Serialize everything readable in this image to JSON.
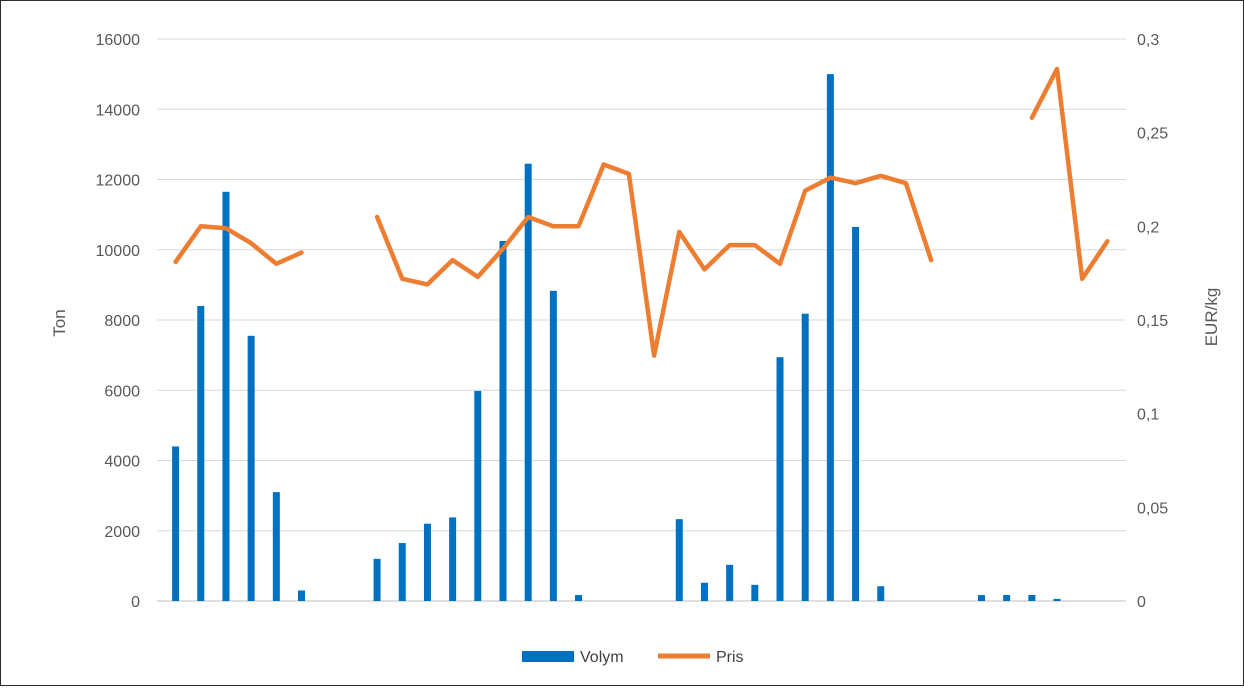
{
  "chart_data": {
    "type": "bar+line",
    "x": [
      1,
      2,
      3,
      4,
      5,
      6,
      7,
      8,
      9,
      10,
      11,
      12,
      13,
      14,
      15,
      16,
      17,
      18,
      19,
      20,
      21,
      22,
      23,
      24,
      25,
      26,
      27,
      28,
      29,
      30,
      31,
      32,
      33,
      34,
      35,
      36,
      37,
      38
    ],
    "series": [
      {
        "name": "Volym",
        "type": "bar",
        "axis": "left",
        "color": "#0070C0",
        "values": [
          4400,
          8400,
          11650,
          7550,
          3100,
          300,
          null,
          null,
          1200,
          1650,
          2200,
          2380,
          5980,
          10250,
          12450,
          8830,
          170,
          null,
          null,
          null,
          2330,
          520,
          1030,
          460,
          6940,
          8180,
          15000,
          10650,
          420,
          null,
          null,
          null,
          170,
          170,
          170,
          60,
          null,
          null
        ]
      },
      {
        "name": "Pris",
        "type": "line",
        "axis": "right",
        "color": "#ED7D31",
        "values": [
          0.181,
          0.2,
          0.199,
          0.191,
          0.18,
          0.186,
          null,
          null,
          0.205,
          0.172,
          0.169,
          0.182,
          0.173,
          0.188,
          0.205,
          0.2,
          0.2,
          0.233,
          0.228,
          0.131,
          0.197,
          0.177,
          0.19,
          0.19,
          0.18,
          0.219,
          0.226,
          0.223,
          0.227,
          0.223,
          0.182,
          null,
          null,
          null,
          0.258,
          0.284,
          0.172,
          0.192
        ]
      }
    ],
    "y_left": {
      "label": "Ton",
      "min": 0,
      "max": 16000,
      "ticks": [
        "0",
        "2000",
        "4000",
        "6000",
        "8000",
        "10000",
        "12000",
        "14000",
        "16000"
      ]
    },
    "y_right": {
      "label": "EUR/kg",
      "min": 0,
      "max": 0.3,
      "ticks": [
        "0",
        "0,05",
        "0,1",
        "0,15",
        "0,2",
        "0,25",
        "0,3"
      ]
    },
    "grid": true,
    "legend_position": "bottom",
    "legend": [
      {
        "label": "Volym",
        "color": "#0070C0",
        "marker": "bar"
      },
      {
        "label": "Pris",
        "color": "#ED7D31",
        "marker": "line"
      }
    ]
  }
}
